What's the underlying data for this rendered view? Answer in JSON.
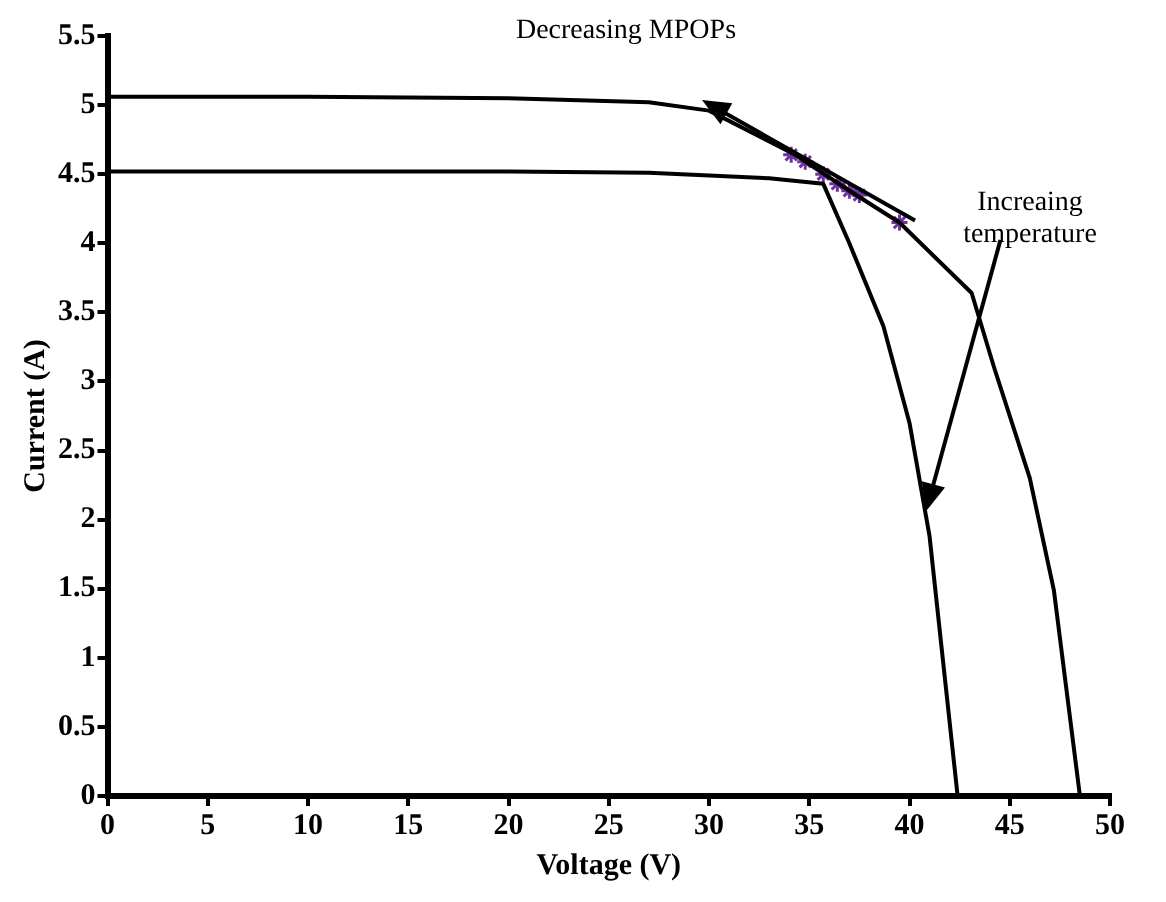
{
  "chart_data": {
    "type": "line",
    "xlabel": "Voltage (V)",
    "ylabel": "Current (A)",
    "annotations": [
      {
        "text": "Decreasing MPOPs",
        "x": 29.7,
        "y": 5.04
      },
      {
        "text": "Increaing temperature",
        "x": 40.8,
        "y": 2.06
      }
    ],
    "series": [
      {
        "color": "#000000",
        "marker": "none",
        "x": [
          0,
          10,
          20,
          27,
          30,
          34.3,
          37,
          39.5,
          43.1,
          44.2,
          46,
          47.2,
          48.5
        ],
        "values": [
          5.06,
          5.06,
          5.05,
          5.02,
          4.96,
          4.64,
          4.38,
          4.15,
          3.64,
          3.11,
          2.3,
          1.49,
          0
        ]
      },
      {
        "color": "#000000",
        "marker": "none",
        "x": [
          0,
          10,
          20,
          27,
          33,
          35.7,
          37,
          38.7,
          40,
          41,
          42.4
        ],
        "values": [
          4.52,
          4.52,
          4.52,
          4.51,
          4.47,
          4.43,
          4.0,
          3.4,
          2.7,
          1.88,
          0
        ]
      },
      {
        "type": "scatter",
        "color": "#7030a0",
        "marker": "cross",
        "x": [
          34.1,
          34.8,
          35.7,
          36.4,
          37,
          37.5,
          39.5
        ],
        "values": [
          4.64,
          4.59,
          4.5,
          4.43,
          4.38,
          4.35,
          4.15
        ]
      }
    ],
    "xlim": [
      0,
      50
    ],
    "xticks": [
      0,
      5,
      10,
      15,
      20,
      25,
      30,
      35,
      40,
      45,
      50
    ],
    "ylim": [
      0,
      5.5
    ],
    "yticks": [
      0,
      0.5,
      1,
      1.5,
      2,
      2.5,
      3,
      3.5,
      4,
      4.5,
      5,
      5.5
    ],
    "grid": false,
    "legend": false
  }
}
